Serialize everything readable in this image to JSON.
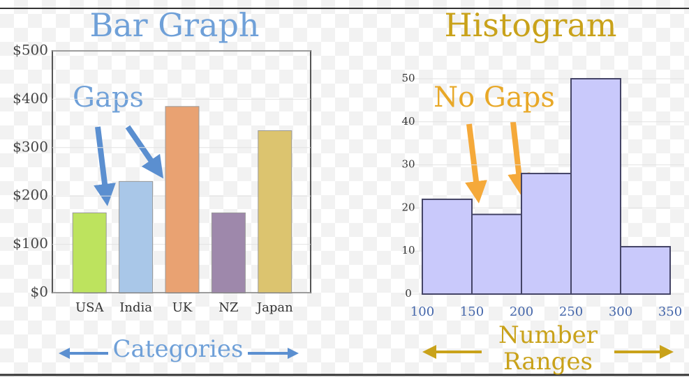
{
  "chart_data": [
    {
      "type": "bar",
      "title": "Bar Graph",
      "categories": [
        "USA",
        "India",
        "UK",
        "NZ",
        "Japan"
      ],
      "values": [
        165,
        230,
        385,
        165,
        335
      ],
      "colors": [
        "#bde35e",
        "#a9c7e8",
        "#e9a272",
        "#9e88ab",
        "#dcc46f"
      ],
      "ylim": [
        0,
        500
      ],
      "yticks": [
        {
          "value": 0,
          "label": "$0"
        },
        {
          "value": 100,
          "label": "$100"
        },
        {
          "value": 200,
          "label": "$200"
        },
        {
          "value": 300,
          "label": "$300"
        },
        {
          "value": 400,
          "label": "$400"
        },
        {
          "value": 500,
          "label": "$500"
        }
      ],
      "annotation": "Gaps",
      "xlabel": "Categories"
    },
    {
      "type": "histogram",
      "title": "Histogram",
      "bins": [
        100,
        150,
        200,
        250,
        300,
        350
      ],
      "counts": [
        22,
        18.5,
        28,
        50,
        11
      ],
      "color": "#c9c9fb",
      "xlim": [
        100,
        350
      ],
      "xticks": [
        100,
        150,
        200,
        250,
        300,
        350
      ],
      "ylim": [
        0,
        50
      ],
      "yticks": [
        0,
        10,
        20,
        30,
        40,
        50
      ],
      "annotation": "No Gaps",
      "xlabel": "Number Ranges"
    }
  ]
}
